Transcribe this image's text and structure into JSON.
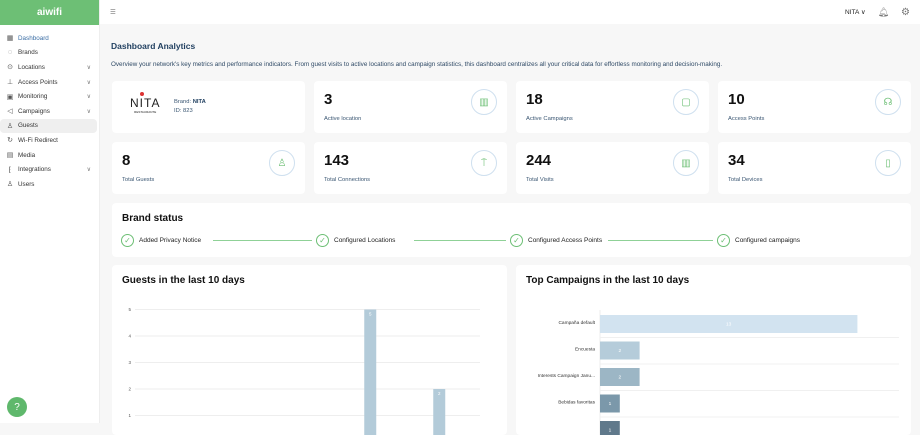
{
  "app": {
    "logo": "aiwifi",
    "brand_color": "#6dbf75"
  },
  "sidebar": {
    "items": [
      {
        "label": "Dashboard",
        "icon": "dashboard-icon",
        "glyph": "▦",
        "chevron": false
      },
      {
        "label": "Brands",
        "icon": "brand-icon",
        "glyph": "◌",
        "chevron": false
      },
      {
        "label": "Locations",
        "icon": "location-pin-icon",
        "glyph": "⊙",
        "chevron": true
      },
      {
        "label": "Access Points",
        "icon": "access-point-icon",
        "glyph": "⊥",
        "chevron": true
      },
      {
        "label": "Monitoring",
        "icon": "monitor-icon",
        "glyph": "▣",
        "chevron": true
      },
      {
        "label": "Campaigns",
        "icon": "megaphone-icon",
        "glyph": "◁",
        "chevron": true
      },
      {
        "label": "Guests",
        "icon": "guests-icon",
        "glyph": "♙",
        "chevron": false
      },
      {
        "label": "Wi-Fi Redirect",
        "icon": "redirect-icon",
        "glyph": "↻",
        "chevron": false
      },
      {
        "label": "Media",
        "icon": "media-icon",
        "glyph": "▤",
        "chevron": false
      },
      {
        "label": "Integrations",
        "icon": "integrations-icon",
        "glyph": "⁅",
        "chevron": true
      },
      {
        "label": "Users",
        "icon": "user-icon",
        "glyph": "♙",
        "chevron": false
      }
    ]
  },
  "topbar": {
    "user": "NITA"
  },
  "page": {
    "title": "Dashboard Analytics",
    "description": "Overview your network's key metrics and performance indicators. From guest visits to active locations and campaign statistics, this dashboard centralizes all your critical data for effortless monitoring and decision-making."
  },
  "brand": {
    "logo": "NITA",
    "brand_label": "Brand:",
    "brand_name": "NITA",
    "id_text": "ID: 823"
  },
  "stats": [
    {
      "value": "3",
      "label": "Active location",
      "icon": "map-icon",
      "glyph": "▥"
    },
    {
      "value": "18",
      "label": "Active Campaigns",
      "icon": "campaign-icon",
      "glyph": "▢"
    },
    {
      "value": "10",
      "label": "Access Points",
      "icon": "wifi-signal-icon",
      "glyph": "☊"
    },
    {
      "value": "8",
      "label": "Total Guests",
      "icon": "user-icon",
      "glyph": "♙"
    },
    {
      "value": "143",
      "label": "Total Connections",
      "icon": "antenna-icon",
      "glyph": "⍑"
    },
    {
      "value": "244",
      "label": "Total Visits",
      "icon": "map-pin-icon",
      "glyph": "▥"
    },
    {
      "value": "34",
      "label": "Total Devices",
      "icon": "phone-icon",
      "glyph": "▯"
    }
  ],
  "brand_status": {
    "title": "Brand status",
    "steps": [
      "Added Privacy Notice",
      "Configured Locations",
      "Configured Access Points",
      "Configured campaigns"
    ]
  },
  "chart_data": [
    {
      "type": "bar",
      "title": "Guests in the last 10 days",
      "values": [
        0,
        0,
        0,
        0,
        0,
        0,
        5,
        0,
        2,
        0
      ],
      "yticks": [
        1,
        2,
        3,
        4,
        5
      ],
      "ylim": [
        0,
        5
      ],
      "grid": true,
      "color": "#b3cbd9"
    },
    {
      "type": "bar",
      "orientation": "horizontal",
      "title": "Top Campaigns in the last 10 days",
      "categories": [
        "Campaña default",
        "Encuesta",
        "Interests Campaign Janu...",
        "Bebidas favoritas",
        ""
      ],
      "values": [
        13,
        2,
        2,
        1,
        1
      ],
      "colors": [
        "#d2e3f0",
        "#b5ccda",
        "#9cb6c5",
        "#7b98aa",
        "#60798b"
      ]
    }
  ]
}
